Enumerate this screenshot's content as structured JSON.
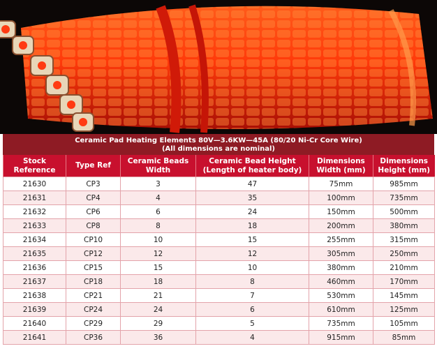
{
  "table": {
    "title": [
      "Ceramic Pad Heating Elements 80V—3.6KW—45A (80/20 Ni-Cr Core Wire)",
      "(All dimensions are nominal)"
    ],
    "headers": [
      [
        "Stock",
        "Reference"
      ],
      [
        "Type Ref"
      ],
      [
        "Ceramic Beads",
        "Width"
      ],
      [
        "Ceramic Bead Height",
        "(Length of heater body)"
      ],
      [
        "Dimensions",
        "Width (mm)"
      ],
      [
        "Dimensions",
        "Height  (mm)"
      ]
    ],
    "rows": [
      [
        "21630",
        "CP3",
        "3",
        "47",
        "75mm",
        "985mm"
      ],
      [
        "21631",
        "CP4",
        "4",
        "35",
        "100mm",
        "735mm"
      ],
      [
        "21632",
        "CP6",
        "6",
        "24",
        "150mm",
        "500mm"
      ],
      [
        "21633",
        "CP8",
        "8",
        "18",
        "200mm",
        "380mm"
      ],
      [
        "21634",
        "CP10",
        "10",
        "15",
        "255mm",
        "315mm"
      ],
      [
        "21635",
        "CP12",
        "12",
        "12",
        "305mm",
        "250mm"
      ],
      [
        "21636",
        "CP15",
        "15",
        "10",
        "380mm",
        "210mm"
      ],
      [
        "21637",
        "CP18",
        "18",
        "8",
        "460mm",
        "170mm"
      ],
      [
        "21638",
        "CP21",
        "21",
        "7",
        "530mm",
        "145mm"
      ],
      [
        "21639",
        "CP24",
        "24",
        "6",
        "610mm",
        "125mm"
      ],
      [
        "21640",
        "CP29",
        "29",
        "5",
        "735mm",
        "105mm"
      ],
      [
        "21641",
        "CP36",
        "36",
        "4",
        "915mm",
        "85mm"
      ]
    ]
  }
}
